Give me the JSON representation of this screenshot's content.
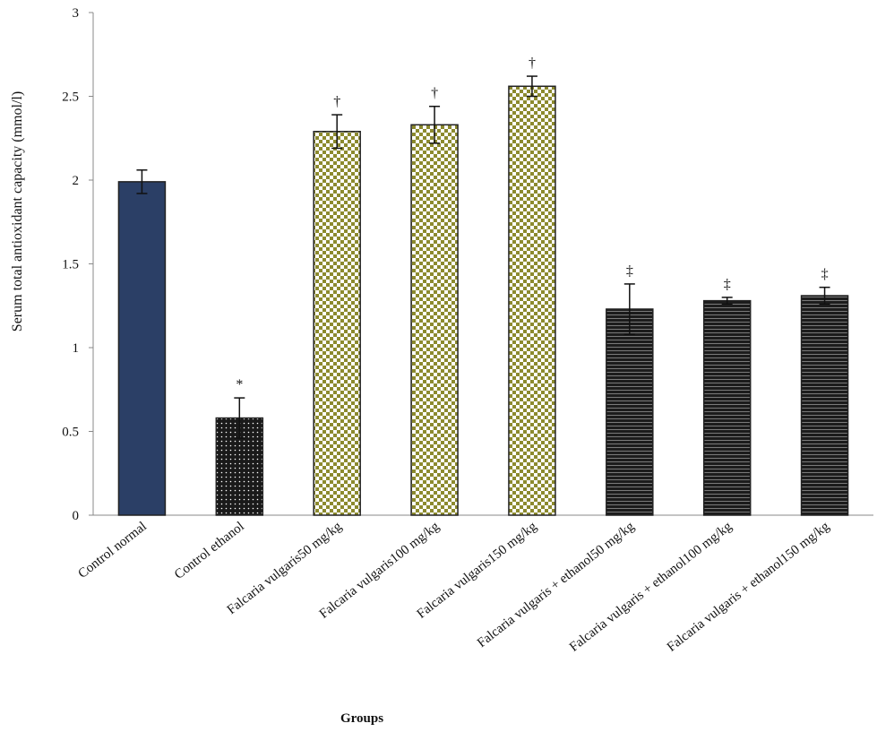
{
  "chart_data": {
    "type": "bar",
    "title": "",
    "xlabel": "Groups",
    "ylabel": "Serum total antioxidant capacity (mmol/l)",
    "ylim": [
      0,
      3
    ],
    "yticks": [
      "0",
      "0.5",
      "1",
      "1.5",
      "2",
      "2.5",
      "3"
    ],
    "grid": false,
    "categories": [
      "Control normal",
      "Control  ethanol",
      "Falcaria vulgaris50 mg/kg",
      "Falcaria vulgaris100 mg/kg",
      "Falcaria vulgaris150 mg/kg",
      "Falcaria vulgaris + ethanol50 mg/kg",
      "Falcaria vulgaris + ethanol100 mg/kg",
      "Falcaria vulgaris + ethanol150 mg/kg"
    ],
    "values": [
      1.99,
      0.58,
      2.29,
      2.33,
      2.56,
      1.23,
      1.28,
      1.31
    ],
    "errors": [
      0.07,
      0.12,
      0.1,
      0.11,
      0.06,
      0.15,
      0.02,
      0.05
    ],
    "significance": [
      "",
      "*",
      "†",
      "†",
      "†",
      "‡",
      "‡",
      "‡"
    ],
    "patterns": [
      "solid-navy",
      "black-dots",
      "olive-checker",
      "olive-checker",
      "olive-checker",
      "black-stripes",
      "black-stripes",
      "black-stripes"
    ],
    "colors": {
      "solid-navy": "#2b3f66",
      "black-dots": "#1a1a1a",
      "olive-checker": "#8c8a2e",
      "black-stripes": "#1c1c1c"
    }
  }
}
